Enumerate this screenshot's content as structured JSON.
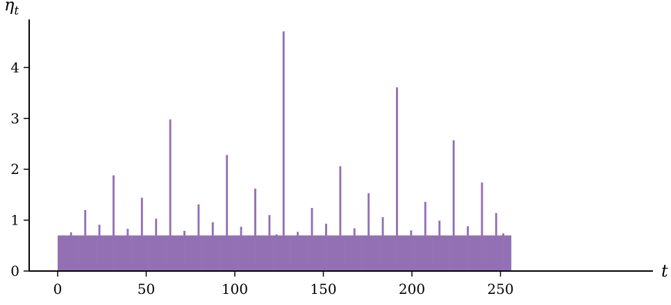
{
  "chart_data": {
    "type": "bar",
    "xlabel": "t",
    "ylabel": "η",
    "ylabel_subscript": "t",
    "xlim": [
      -7,
      267
    ],
    "ylim": [
      0,
      4.9
    ],
    "x_ticks": [
      0,
      50,
      100,
      150,
      200,
      250
    ],
    "y_ticks": [
      0,
      1,
      2,
      3,
      4
    ],
    "bar_color": "#9370b4",
    "grid": false,
    "n": 256,
    "baseline_value": 0.7,
    "spikes": [
      {
        "t": 7,
        "value": 0.76
      },
      {
        "t": 15,
        "value": 1.2
      },
      {
        "t": 23,
        "value": 0.91
      },
      {
        "t": 31,
        "value": 1.88
      },
      {
        "t": 39,
        "value": 0.83
      },
      {
        "t": 47,
        "value": 1.44
      },
      {
        "t": 55,
        "value": 1.03
      },
      {
        "t": 63,
        "value": 2.98
      },
      {
        "t": 71,
        "value": 0.79
      },
      {
        "t": 79,
        "value": 1.31
      },
      {
        "t": 87,
        "value": 0.96
      },
      {
        "t": 95,
        "value": 2.28
      },
      {
        "t": 103,
        "value": 0.87
      },
      {
        "t": 111,
        "value": 1.62
      },
      {
        "t": 119,
        "value": 1.1
      },
      {
        "t": 123,
        "value": 0.72
      },
      {
        "t": 127,
        "value": 4.71
      },
      {
        "t": 135,
        "value": 0.77
      },
      {
        "t": 143,
        "value": 1.24
      },
      {
        "t": 151,
        "value": 0.93
      },
      {
        "t": 159,
        "value": 2.06
      },
      {
        "t": 167,
        "value": 0.84
      },
      {
        "t": 175,
        "value": 1.53
      },
      {
        "t": 183,
        "value": 1.06
      },
      {
        "t": 191,
        "value": 3.61
      },
      {
        "t": 199,
        "value": 0.8
      },
      {
        "t": 207,
        "value": 1.36
      },
      {
        "t": 215,
        "value": 0.99
      },
      {
        "t": 223,
        "value": 2.57
      },
      {
        "t": 231,
        "value": 0.88
      },
      {
        "t": 239,
        "value": 1.74
      },
      {
        "t": 247,
        "value": 1.14
      },
      {
        "t": 251,
        "value": 0.74
      }
    ]
  }
}
